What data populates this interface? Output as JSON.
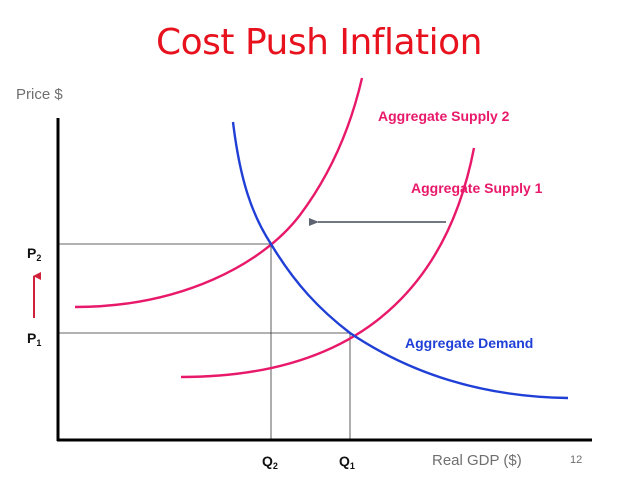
{
  "slide": {
    "title": "Cost Push Inflation",
    "page_number": "12"
  },
  "axes": {
    "y_label": "Price $",
    "x_label": "Real GDP ($)"
  },
  "curves": {
    "aggregate_supply_2": "Aggregate Supply 2",
    "aggregate_supply_1": "Aggregate Supply 1",
    "aggregate_demand": "Aggregate Demand"
  },
  "ticks": {
    "p2": {
      "main": "P",
      "sub": "2"
    },
    "p1": {
      "main": "P",
      "sub": "1"
    },
    "q2": {
      "main": "Q",
      "sub": "2"
    },
    "q1": {
      "main": "Q",
      "sub": "1"
    }
  },
  "colors": {
    "title": "#e8121e",
    "supply": "#e8196a",
    "demand": "#1f3fd6",
    "shift_arrow": "#5d6470",
    "price_arrow": "#d0203a"
  },
  "icons": {
    "shift_arrow": "left-arrow-icon",
    "price_rise_arrow": "up-arrow-icon"
  }
}
